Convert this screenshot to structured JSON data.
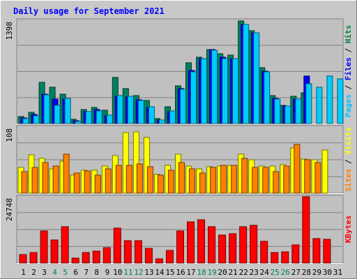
{
  "chart_data": {
    "type": "bar",
    "title": "Daily usage for September 2021",
    "x": [
      "1",
      "2",
      "3",
      "4",
      "5",
      "6",
      "7",
      "8",
      "9",
      "10",
      "11",
      "12",
      "13",
      "14",
      "15",
      "16",
      "17",
      "18",
      "19",
      "20",
      "21",
      "22",
      "23",
      "24",
      "25",
      "26",
      "27",
      "28",
      "29",
      "30",
      "31"
    ],
    "weekend_days": [
      "4",
      "5",
      "11",
      "12",
      "18",
      "19",
      "25",
      "26"
    ],
    "panels": [
      {
        "id": "top",
        "max_label": "1398",
        "ylim": [
          0,
          1398
        ],
        "side_labels": [
          {
            "text": "Pages",
            "color": "#00c0ff"
          },
          {
            "text": " / ",
            "color": "#000000"
          },
          {
            "text": "Files",
            "color": "#0000ff"
          },
          {
            "text": " / ",
            "color": "#000000"
          },
          {
            "text": "Hits",
            "color": "#008040"
          }
        ],
        "series": [
          {
            "name": "Hits",
            "color": "#008060",
            "values": [
              90,
              150,
              560,
              490,
              400,
              60,
              190,
              220,
              180,
              620,
              470,
              380,
              310,
              70,
              230,
              510,
              820,
              900,
              1000,
              940,
              930,
              1390,
              1260,
              760,
              380,
              250,
              370,
              420,
              0,
              0,
              0
            ]
          },
          {
            "name": "Files",
            "color": "#0000ff",
            "values": [
              80,
              120,
              400,
              330,
              330,
              40,
              160,
              190,
              100,
              370,
              360,
              320,
              220,
              50,
              160,
              470,
              720,
              880,
              1000,
              900,
              880,
              1340,
              1230,
              710,
              340,
              240,
              330,
              640,
              0,
              0,
              0
            ]
          },
          {
            "name": "Pages",
            "color": "#00ccff",
            "values": [
              70,
              100,
              390,
              250,
              340,
              30,
              160,
              170,
              110,
              380,
              370,
              310,
              230,
              50,
              170,
              460,
              700,
              880,
              990,
              880,
              880,
              1340,
              1230,
              700,
              330,
              240,
              330,
              540,
              490,
              640,
              600
            ]
          }
        ]
      },
      {
        "id": "middle",
        "max_label": "108",
        "ylim": [
          0,
          108
        ],
        "side_labels": [
          {
            "text": "Sites",
            "color": "#ff8000"
          },
          {
            "text": " / ",
            "color": "#000000"
          },
          {
            "text": "Visits",
            "color": "#ffff00"
          }
        ],
        "series": [
          {
            "name": "Visits",
            "color": "#ffff00",
            "values": [
              42,
              62,
              57,
              40,
              52,
              30,
              38,
              38,
              44,
              61,
              99,
              100,
              91,
              31,
              45,
              64,
              44,
              40,
              43,
              44,
              45,
              64,
              55,
              44,
              44,
              47,
              74,
              56,
              55,
              71,
              0
            ]
          },
          {
            "name": "Sites",
            "color": "#ff8000",
            "values": [
              35,
              42,
              50,
              44,
              64,
              33,
              36,
              30,
              40,
              45,
              45,
              48,
              43,
              30,
              38,
              50,
              40,
              33,
              42,
              45,
              45,
              57,
              42,
              42,
              35,
              44,
              80,
              55,
              50,
              0,
              0
            ]
          }
        ]
      },
      {
        "id": "bottom",
        "max_label": "24748",
        "ylim": [
          0,
          24748
        ],
        "side_labels": [
          {
            "text": "KBytes",
            "color": "#ff0000"
          }
        ],
        "series": [
          {
            "name": "KBytes",
            "color": "#ff0000",
            "values": [
              3000,
              3800,
              12000,
              8500,
              13500,
              1800,
              3800,
              4400,
              5700,
              13000,
              8300,
              8300,
              5500,
              1600,
              4600,
              12000,
              15300,
              16100,
              13500,
              10300,
              11000,
              13500,
              14000,
              8000,
              4000,
              4100,
              6800,
              24748,
              9000,
              8900,
              0
            ]
          }
        ]
      }
    ]
  }
}
